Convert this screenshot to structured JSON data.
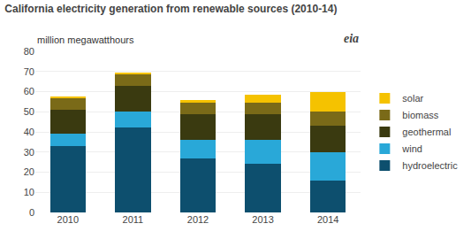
{
  "chart_data": {
    "type": "bar",
    "title": "California electricity generation from renewable sources (2010-14)",
    "subtitle": "million megawatthours",
    "annotations": [
      "eia"
    ],
    "categories": [
      "2010",
      "2011",
      "2012",
      "2013",
      "2014"
    ],
    "series": [
      {
        "name": "hydroelectric",
        "color": "#0d4f6e",
        "values": [
          33,
          42,
          27,
          24,
          16
        ]
      },
      {
        "name": "wind",
        "color": "#29a8d8",
        "values": [
          6,
          8,
          9,
          12,
          14
        ]
      },
      {
        "name": "geothermal",
        "color": "#3a3a10",
        "values": [
          12,
          13,
          13,
          13,
          13
        ]
      },
      {
        "name": "biomass",
        "color": "#7a6a18",
        "values": [
          5.5,
          5.5,
          5.5,
          5.5,
          7
        ]
      },
      {
        "name": "solar",
        "color": "#f5c200",
        "values": [
          1,
          1,
          1.5,
          4,
          10
        ]
      }
    ],
    "stacked": true,
    "ylim": [
      0,
      80
    ],
    "yticks": [
      0,
      10,
      20,
      30,
      40,
      50,
      60,
      70,
      80
    ],
    "grid": true,
    "legend": "right"
  }
}
